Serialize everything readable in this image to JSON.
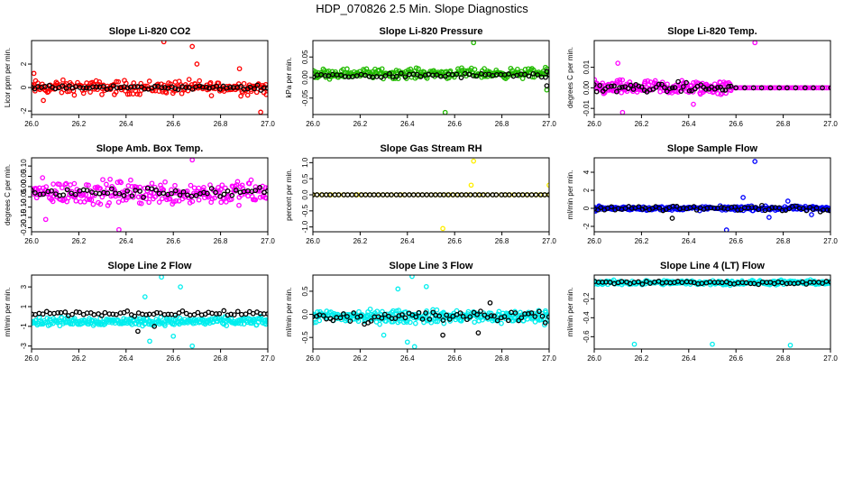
{
  "figure": {
    "title": "HDP_070826  2.5 Min. Slope Diagnostics"
  },
  "chart_data": [
    {
      "type": "scatter",
      "title": "Slope Li-820 CO2",
      "xlabel": "",
      "ylabel": "Licor ppm per min.",
      "xlim": [
        26.0,
        27.0
      ],
      "ylim": [
        -2.3,
        4.0
      ],
      "x_ticks": [
        "26.0",
        "26.2",
        "26.4",
        "26.6",
        "26.8",
        "27.0"
      ],
      "y_ticks": [
        "-2",
        "0",
        "2"
      ],
      "color": "#ff0000",
      "series": [
        {
          "name": "colored",
          "color": "#ff0000",
          "center": 0,
          "spread": 0.5,
          "count": 220,
          "outliers": [
            [
              26.56,
              3.9
            ],
            [
              26.68,
              3.5
            ],
            [
              26.7,
              2.0
            ],
            [
              26.97,
              -2.1
            ],
            [
              26.88,
              1.6
            ],
            [
              26.01,
              1.2
            ],
            [
              26.05,
              -1.1
            ]
          ]
        },
        {
          "name": "reference",
          "color": "#000000",
          "center": 0,
          "spread": 0.15,
          "count": 70,
          "outliers": []
        }
      ]
    },
    {
      "type": "scatter",
      "title": "Slope Li-820 Pressure",
      "xlabel": "",
      "ylabel": "kPa per min.",
      "xlim": [
        26.0,
        27.0
      ],
      "ylim": [
        -0.09,
        0.09
      ],
      "x_ticks": [
        "26.0",
        "26.2",
        "26.4",
        "26.6",
        "26.8",
        "27.0"
      ],
      "y_ticks": [
        "-0.05",
        "0.00",
        "0.05"
      ],
      "color": "#00cc00",
      "series": [
        {
          "name": "colored",
          "color": "#22bb00",
          "center": 0.01,
          "spread": 0.01,
          "count": 260,
          "outliers": [
            [
              26.68,
              0.085
            ],
            [
              26.56,
              -0.085
            ],
            [
              26.02,
              0.0
            ],
            [
              26.99,
              -0.03
            ]
          ]
        },
        {
          "name": "reference",
          "color": "#000000",
          "center": 0.005,
          "spread": 0.005,
          "count": 60,
          "outliers": [
            [
              26.99,
              0.015
            ],
            [
              26.99,
              -0.02
            ]
          ]
        }
      ]
    },
    {
      "type": "scatter",
      "title": "Slope Li-820 Temp.",
      "xlabel": "",
      "ylabel": "degrees C per min.",
      "xlim": [
        26.0,
        27.0
      ],
      "ylim": [
        -0.013,
        0.023
      ],
      "x_ticks": [
        "26.0",
        "26.2",
        "26.4",
        "26.6",
        "26.8",
        "27.0"
      ],
      "y_ticks": [
        "-0.01",
        "0.00",
        "0.01"
      ],
      "color": "#ff00ff",
      "series": [
        {
          "name": "colored",
          "color": "#ff00ff",
          "center": 0.0,
          "spread": 0.003,
          "count": 180,
          "xmax": 26.58,
          "outliers": [
            [
              26.68,
              0.022
            ],
            [
              26.1,
              0.012
            ],
            [
              26.12,
              -0.012
            ],
            [
              26.42,
              -0.008
            ]
          ]
        },
        {
          "name": "flat",
          "color": "#ff00ff",
          "center": 0.0,
          "spread": 0.0,
          "count": 50,
          "xmin": 26.58,
          "outliers": []
        },
        {
          "name": "reference",
          "color": "#000000",
          "center": 0.0,
          "spread": 0.002,
          "count": 50,
          "xmax": 26.58,
          "outliers": []
        },
        {
          "name": "flat-reference",
          "color": "#000000",
          "center": 0.0,
          "spread": 0.0,
          "count": 12,
          "xmin": 26.6,
          "outliers": []
        }
      ]
    },
    {
      "type": "scatter",
      "title": "Slope Amb. Box Temp.",
      "xlabel": "",
      "ylabel": "degrees C per min.",
      "xlim": [
        26.0,
        27.0
      ],
      "ylim": [
        -0.22,
        0.14
      ],
      "x_ticks": [
        "26.0",
        "26.2",
        "26.4",
        "26.6",
        "26.8",
        "27.0"
      ],
      "y_ticks": [
        "-0.20",
        "-0.15",
        "-0.10",
        "-0.05",
        "0.00",
        "0.05",
        "0.10"
      ],
      "color": "#ff00ff",
      "series": [
        {
          "name": "colored",
          "color": "#ff00ff",
          "center": -0.03,
          "spread": 0.05,
          "count": 260,
          "outliers": [
            [
              26.68,
              0.13
            ],
            [
              26.37,
              -0.21
            ],
            [
              26.06,
              -0.16
            ]
          ]
        },
        {
          "name": "reference",
          "color": "#000000",
          "center": -0.03,
          "spread": 0.02,
          "count": 60,
          "outliers": []
        }
      ]
    },
    {
      "type": "scatter",
      "title": "Slope Gas Stream RH",
      "xlabel": "",
      "ylabel": "percent per min.",
      "xlim": [
        26.0,
        27.0
      ],
      "ylim": [
        -1.15,
        1.15
      ],
      "x_ticks": [
        "26.0",
        "26.2",
        "26.4",
        "26.6",
        "26.8",
        "27.0"
      ],
      "y_ticks": [
        "-1.0",
        "-0.5",
        "0.0",
        "0.5",
        "1.0"
      ],
      "color": "#ffff00",
      "series": [
        {
          "name": "colored",
          "color": "#ffee00",
          "center": 0.0,
          "spread": 0.0,
          "count": 55,
          "outliers": [
            [
              26.68,
              1.05
            ],
            [
              26.55,
              -1.05
            ],
            [
              27.0,
              0.3
            ],
            [
              26.67,
              0.3
            ],
            [
              26.0,
              0.0
            ]
          ]
        },
        {
          "name": "reference",
          "color": "#000000",
          "center": 0.0,
          "spread": 0.0,
          "count": 55,
          "outliers": []
        }
      ]
    },
    {
      "type": "scatter",
      "title": "Slope Sample Flow",
      "xlabel": "",
      "ylabel": "ml/min per min.",
      "xlim": [
        26.0,
        27.0
      ],
      "ylim": [
        -2.6,
        5.6
      ],
      "x_ticks": [
        "26.0",
        "26.2",
        "26.4",
        "26.6",
        "26.8",
        "27.0"
      ],
      "y_ticks": [
        "-2",
        "0",
        "2",
        "4"
      ],
      "color": "#0000ff",
      "series": [
        {
          "name": "colored",
          "color": "#0000ff",
          "center": 0.0,
          "spread": 0.2,
          "count": 240,
          "outliers": [
            [
              26.68,
              5.2
            ],
            [
              26.82,
              0.8
            ],
            [
              26.56,
              -2.4
            ],
            [
              26.63,
              1.2
            ],
            [
              26.74,
              -1.0
            ],
            [
              26.92,
              -0.7
            ]
          ]
        },
        {
          "name": "reference",
          "color": "#000000",
          "center": 0.0,
          "spread": 0.25,
          "count": 70,
          "outliers": [
            [
              26.33,
              -1.1
            ]
          ]
        }
      ]
    },
    {
      "type": "scatter",
      "title": "Slope Line 2 Flow",
      "xlabel": "",
      "ylabel": "ml/min per min.",
      "xlim": [
        26.0,
        27.0
      ],
      "ylim": [
        -3.3,
        4.2
      ],
      "x_ticks": [
        "26.0",
        "26.2",
        "26.4",
        "26.6",
        "26.8",
        "27.0"
      ],
      "y_ticks": [
        "-3",
        "-1",
        "1",
        "3"
      ],
      "color": "#00ffff",
      "series": [
        {
          "name": "colored",
          "color": "#00eeee",
          "center": -0.5,
          "spread": 0.35,
          "count": 280,
          "outliers": [
            [
              26.55,
              4.0
            ],
            [
              26.48,
              2.0
            ],
            [
              26.63,
              3.0
            ],
            [
              26.5,
              -2.5
            ],
            [
              26.68,
              -3.0
            ],
            [
              26.6,
              -2.0
            ]
          ]
        },
        {
          "name": "reference",
          "color": "#000000",
          "center": 0.3,
          "spread": 0.2,
          "count": 65,
          "outliers": [
            [
              26.52,
              -1.0
            ],
            [
              26.45,
              -1.5
            ]
          ]
        }
      ]
    },
    {
      "type": "scatter",
      "title": "Slope Line 3 Flow",
      "xlabel": "",
      "ylabel": "ml/min per min.",
      "xlim": [
        26.0,
        27.0
      ],
      "ylim": [
        -0.75,
        0.85
      ],
      "x_ticks": [
        "26.0",
        "26.2",
        "26.4",
        "26.6",
        "26.8",
        "27.0"
      ],
      "y_ticks": [
        "-0.5",
        "0.0",
        "0.5"
      ],
      "color": "#00ffff",
      "series": [
        {
          "name": "colored",
          "color": "#00eeee",
          "center": -0.05,
          "spread": 0.12,
          "count": 300,
          "outliers": [
            [
              26.42,
              0.82
            ],
            [
              26.36,
              0.55
            ],
            [
              26.48,
              0.6
            ],
            [
              26.4,
              -0.6
            ],
            [
              26.43,
              -0.7
            ],
            [
              26.3,
              -0.45
            ]
          ]
        },
        {
          "name": "reference",
          "color": "#000000",
          "center": -0.05,
          "spread": 0.12,
          "count": 70,
          "outliers": [
            [
              26.75,
              0.25
            ],
            [
              26.7,
              -0.4
            ],
            [
              26.55,
              -0.45
            ]
          ]
        }
      ]
    },
    {
      "type": "scatter",
      "title": "Slope Line 4 (LT) Flow",
      "xlabel": "",
      "ylabel": "ml/min per min.",
      "xlim": [
        26.0,
        27.0
      ],
      "ylim": [
        -0.73,
        0.05
      ],
      "x_ticks": [
        "26.0",
        "26.2",
        "26.4",
        "26.6",
        "26.8",
        "27.0"
      ],
      "y_ticks": [
        "-0.6",
        "-0.4",
        "-0.2"
      ],
      "color": "#00ffff",
      "series": [
        {
          "name": "colored",
          "color": "#00eeee",
          "center": -0.03,
          "spread": 0.02,
          "count": 260,
          "outliers": [
            [
              26.17,
              -0.68
            ],
            [
              26.5,
              -0.68
            ],
            [
              26.83,
              -0.69
            ]
          ]
        },
        {
          "name": "reference",
          "color": "#000000",
          "center": -0.03,
          "spread": 0.015,
          "count": 60,
          "outliers": []
        }
      ]
    }
  ]
}
